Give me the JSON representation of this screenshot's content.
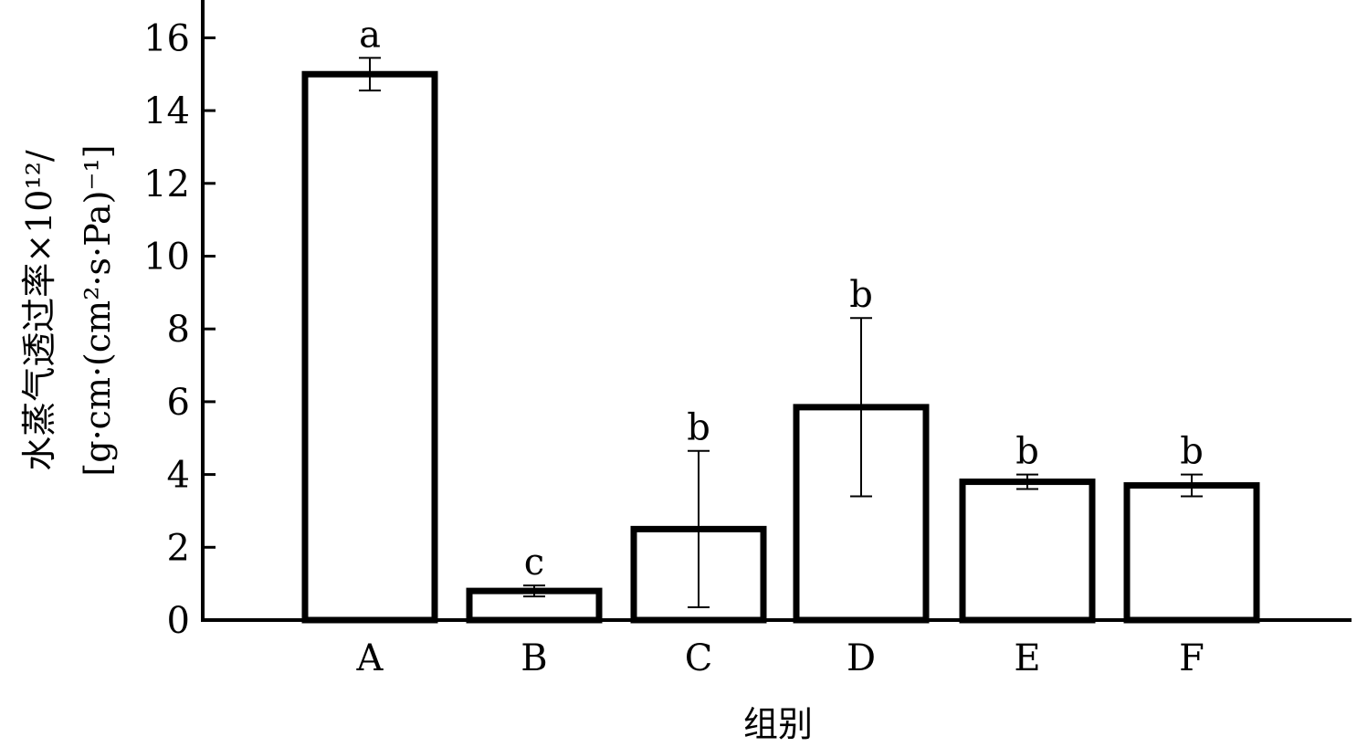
{
  "chart_data": {
    "type": "bar",
    "title": "",
    "xlabel": "组别",
    "ylabel_line1": "水蒸气透过率×10¹²/",
    "ylabel_line2": "[g·cm·(cm²·s·Pa)⁻¹]",
    "categories": [
      "A",
      "B",
      "C",
      "D",
      "E",
      "F"
    ],
    "values": [
      15.0,
      0.8,
      2.5,
      5.85,
      3.8,
      3.7
    ],
    "errors": [
      0.45,
      0.15,
      2.15,
      2.45,
      0.2,
      0.3
    ],
    "significance": [
      "a",
      "c",
      "b",
      "b",
      "b",
      "b"
    ],
    "ylim": [
      0,
      17
    ],
    "yticks": [
      0,
      2,
      4,
      6,
      8,
      10,
      12,
      14,
      16
    ],
    "grid": false,
    "legend": "none",
    "bar_fill": "#ffffff",
    "bar_stroke": "#000000"
  }
}
